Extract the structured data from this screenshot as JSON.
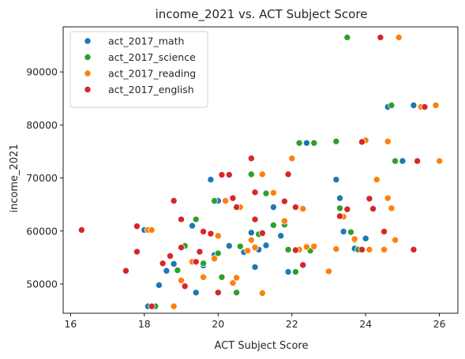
{
  "chart_data": {
    "type": "scatter",
    "title": "income_2021 vs. ACT Subject Score",
    "xlabel": "ACT Subject Score",
    "ylabel": "income_2021",
    "xlim": [
      15.8,
      26.5
    ],
    "ylim": [
      44500,
      98500
    ],
    "x_ticks": [
      16,
      18,
      20,
      22,
      24,
      26
    ],
    "y_ticks": [
      50000,
      60000,
      70000,
      80000,
      90000
    ],
    "x_tick_labels": [
      "16",
      "18",
      "20",
      "22",
      "24",
      "26"
    ],
    "y_tick_labels": [
      "50000",
      "60000",
      "70000",
      "80000",
      "90000"
    ],
    "grid": false,
    "legend_position": "top-left",
    "series": [
      {
        "name": "act_2017_math",
        "color": "#1f77b4",
        "points": [
          [
            18.0,
            60200
          ],
          [
            18.1,
            45800
          ],
          [
            18.4,
            49800
          ],
          [
            18.6,
            52500
          ],
          [
            18.8,
            53800
          ],
          [
            19.0,
            50600
          ],
          [
            19.3,
            61000
          ],
          [
            19.4,
            48400
          ],
          [
            19.6,
            53500
          ],
          [
            19.8,
            69700
          ],
          [
            19.9,
            55500
          ],
          [
            20.0,
            65700
          ],
          [
            20.3,
            57200
          ],
          [
            20.5,
            64500
          ],
          [
            20.7,
            56000
          ],
          [
            20.9,
            59700
          ],
          [
            21.0,
            53200
          ],
          [
            21.1,
            56500
          ],
          [
            21.3,
            57300
          ],
          [
            21.5,
            64500
          ],
          [
            21.7,
            59100
          ],
          [
            21.9,
            52300
          ],
          [
            22.0,
            73700
          ],
          [
            22.4,
            76600
          ],
          [
            22.6,
            76600
          ],
          [
            23.2,
            69700
          ],
          [
            23.3,
            66200
          ],
          [
            23.4,
            59900
          ],
          [
            23.5,
            64200
          ],
          [
            23.7,
            56700
          ],
          [
            24.0,
            58600
          ],
          [
            24.0,
            77100
          ],
          [
            24.6,
            83400
          ],
          [
            24.8,
            73200
          ],
          [
            25.0,
            73200
          ],
          [
            25.3,
            83700
          ]
        ]
      },
      {
        "name": "act_2017_science",
        "color": "#2ca02c",
        "points": [
          [
            18.2,
            60200
          ],
          [
            18.3,
            45800
          ],
          [
            18.9,
            52600
          ],
          [
            19.1,
            57200
          ],
          [
            19.4,
            62200
          ],
          [
            19.6,
            53900
          ],
          [
            19.9,
            65700
          ],
          [
            20.0,
            55800
          ],
          [
            20.1,
            51300
          ],
          [
            20.5,
            48400
          ],
          [
            20.6,
            57100
          ],
          [
            20.9,
            70700
          ],
          [
            21.1,
            59400
          ],
          [
            21.3,
            67100
          ],
          [
            21.5,
            61100
          ],
          [
            21.8,
            61200
          ],
          [
            21.9,
            56500
          ],
          [
            22.1,
            52300
          ],
          [
            22.2,
            76600
          ],
          [
            22.5,
            56300
          ],
          [
            22.6,
            76600
          ],
          [
            23.2,
            76900
          ],
          [
            23.3,
            64300
          ],
          [
            23.6,
            59800
          ],
          [
            23.7,
            58300
          ],
          [
            23.8,
            56500
          ],
          [
            24.0,
            77100
          ],
          [
            24.8,
            73200
          ],
          [
            24.7,
            83700
          ],
          [
            23.5,
            96500
          ]
        ]
      },
      {
        "name": "act_2017_reading",
        "color": "#ff7f0e",
        "points": [
          [
            18.1,
            60200
          ],
          [
            18.2,
            60200
          ],
          [
            18.8,
            45800
          ],
          [
            19.0,
            50700
          ],
          [
            19.3,
            54200
          ],
          [
            19.6,
            51300
          ],
          [
            19.9,
            54800
          ],
          [
            20.0,
            59100
          ],
          [
            20.2,
            65700
          ],
          [
            20.4,
            50200
          ],
          [
            20.5,
            51200
          ],
          [
            20.6,
            64500
          ],
          [
            20.8,
            56300
          ],
          [
            20.9,
            58300
          ],
          [
            21.0,
            56900
          ],
          [
            21.2,
            48300
          ],
          [
            21.2,
            70700
          ],
          [
            21.5,
            67200
          ],
          [
            21.8,
            61900
          ],
          [
            22.0,
            73700
          ],
          [
            22.2,
            56500
          ],
          [
            22.3,
            64200
          ],
          [
            22.4,
            57000
          ],
          [
            22.6,
            57100
          ],
          [
            23.0,
            52400
          ],
          [
            23.2,
            56600
          ],
          [
            23.4,
            62700
          ],
          [
            23.7,
            58500
          ],
          [
            24.0,
            77100
          ],
          [
            24.1,
            56500
          ],
          [
            24.3,
            69700
          ],
          [
            24.5,
            56500
          ],
          [
            24.6,
            66200
          ],
          [
            24.7,
            64300
          ],
          [
            24.8,
            58300
          ],
          [
            24.9,
            96500
          ],
          [
            25.5,
            83400
          ],
          [
            25.9,
            83700
          ],
          [
            26.0,
            73200
          ],
          [
            24.6,
            76900
          ]
        ]
      },
      {
        "name": "act_2017_english",
        "color": "#d62728",
        "points": [
          [
            16.3,
            60200
          ],
          [
            17.5,
            52500
          ],
          [
            17.8,
            56100
          ],
          [
            17.8,
            60900
          ],
          [
            18.2,
            45800
          ],
          [
            18.5,
            53900
          ],
          [
            18.7,
            55300
          ],
          [
            18.8,
            65700
          ],
          [
            19.0,
            56900
          ],
          [
            19.0,
            62200
          ],
          [
            19.1,
            49600
          ],
          [
            19.4,
            54200
          ],
          [
            19.5,
            56100
          ],
          [
            19.6,
            59900
          ],
          [
            19.8,
            59500
          ],
          [
            20.0,
            48400
          ],
          [
            20.1,
            70600
          ],
          [
            20.3,
            70600
          ],
          [
            20.4,
            66200
          ],
          [
            20.5,
            64500
          ],
          [
            20.9,
            73700
          ],
          [
            21.0,
            62200
          ],
          [
            21.2,
            59600
          ],
          [
            21.8,
            65600
          ],
          [
            22.1,
            56400
          ],
          [
            22.3,
            53600
          ],
          [
            23.3,
            62800
          ],
          [
            23.5,
            64100
          ],
          [
            23.9,
            76800
          ],
          [
            23.9,
            56500
          ],
          [
            24.1,
            66100
          ],
          [
            24.2,
            64200
          ],
          [
            24.4,
            96500
          ],
          [
            24.5,
            59900
          ],
          [
            25.3,
            56500
          ],
          [
            25.4,
            73200
          ],
          [
            25.6,
            83400
          ],
          [
            21.0,
            67300
          ],
          [
            22.1,
            64500
          ],
          [
            21.9,
            70700
          ]
        ]
      }
    ]
  }
}
